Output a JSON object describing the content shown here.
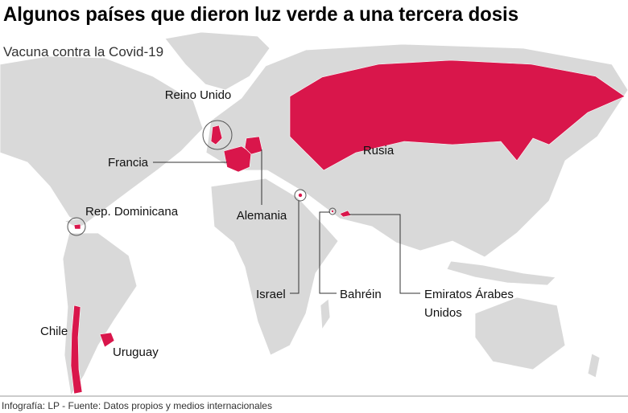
{
  "header": {
    "title": "Algunos países que dieron luz verde a una tercera dosis",
    "subtitle": "Vacuna contra la Covid-19"
  },
  "labels": {
    "reino_unido": "Reino Unido",
    "rusia": "Rusia",
    "francia": "Francia",
    "alemania": "Alemania",
    "rep_dominicana": "Rep. Dominicana",
    "israel": "Israel",
    "bahrein": "Bahréin",
    "emiratos": [
      "Emiratos Árabes",
      "Unidos"
    ],
    "chile": "Chile",
    "uruguay": "Uruguay"
  },
  "footer": "Infografía: LP - Fuente: Datos propios y medios internacionales"
}
